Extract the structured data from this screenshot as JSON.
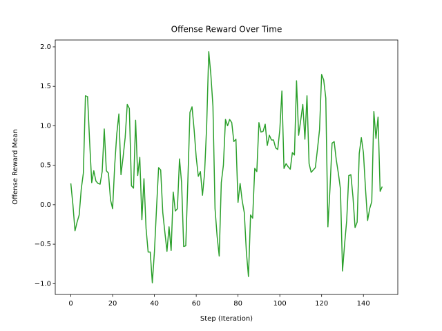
{
  "chart_data": {
    "type": "line",
    "title": "Offense Reward Over Time",
    "x_label": "Step (Iteration)",
    "y_label": "Offense Reward Mean",
    "x": [
      0,
      1,
      2,
      3,
      4,
      5,
      6,
      7,
      8,
      9,
      10,
      11,
      12,
      13,
      14,
      15,
      16,
      17,
      18,
      19,
      20,
      21,
      22,
      23,
      24,
      25,
      26,
      27,
      28,
      29,
      30,
      31,
      32,
      33,
      34,
      35,
      36,
      37,
      38,
      39,
      40,
      41,
      42,
      43,
      44,
      45,
      46,
      47,
      48,
      49,
      50,
      51,
      52,
      53,
      54,
      55,
      56,
      57,
      58,
      59,
      60,
      61,
      62,
      63,
      64,
      65,
      66,
      67,
      68,
      69,
      70,
      71,
      72,
      73,
      74,
      75,
      76,
      77,
      78,
      79,
      80,
      81,
      82,
      83,
      84,
      85,
      86,
      87,
      88,
      89,
      90,
      91,
      92,
      93,
      94,
      95,
      96,
      97,
      98,
      99,
      100,
      101,
      102,
      103,
      104,
      105,
      106,
      107,
      108,
      109,
      110,
      111,
      112,
      113,
      114,
      115,
      116,
      117,
      118,
      119,
      120,
      121,
      122,
      123,
      124,
      125,
      126,
      127,
      128,
      129,
      130,
      131,
      132,
      133,
      134,
      135,
      136,
      137,
      138,
      139,
      140,
      141,
      142,
      143,
      144,
      145,
      146,
      147,
      148,
      149
    ],
    "series": [
      {
        "color": "#2ca02c",
        "values": [
          0.27,
          0.0,
          -0.33,
          -0.22,
          -0.13,
          0.2,
          0.4,
          1.38,
          1.37,
          0.8,
          0.28,
          0.43,
          0.3,
          0.27,
          0.26,
          0.42,
          0.96,
          0.43,
          0.4,
          0.06,
          -0.05,
          0.5,
          0.9,
          1.15,
          0.38,
          0.6,
          0.85,
          1.27,
          1.22,
          0.24,
          0.21,
          1.07,
          0.37,
          0.6,
          -0.19,
          0.33,
          -0.3,
          -0.6,
          -0.6,
          -0.99,
          -0.6,
          -0.05,
          0.47,
          0.44,
          -0.1,
          -0.35,
          -0.59,
          -0.28,
          -0.58,
          0.16,
          -0.08,
          -0.05,
          0.58,
          0.28,
          -0.53,
          -0.52,
          0.3,
          1.17,
          1.24,
          0.95,
          0.6,
          0.36,
          0.42,
          0.12,
          0.4,
          1.0,
          1.94,
          1.65,
          1.25,
          -0.05,
          -0.4,
          -0.65,
          0.28,
          0.5,
          1.08,
          1.0,
          1.08,
          1.04,
          0.8,
          0.83,
          0.03,
          0.27,
          0.05,
          -0.1,
          -0.6,
          -0.91,
          -0.13,
          -0.17,
          0.46,
          0.42,
          1.04,
          0.92,
          0.93,
          1.02,
          0.75,
          0.88,
          0.82,
          0.82,
          0.72,
          0.7,
          0.95,
          1.44,
          0.46,
          0.52,
          0.48,
          0.45,
          0.66,
          0.63,
          1.57,
          0.88,
          1.07,
          1.27,
          0.83,
          1.38,
          0.52,
          0.41,
          0.44,
          0.47,
          0.7,
          0.95,
          1.65,
          1.58,
          1.35,
          -0.28,
          0.2,
          0.78,
          0.8,
          0.57,
          0.4,
          0.2,
          -0.84,
          -0.5,
          -0.2,
          0.37,
          0.38,
          0.1,
          -0.29,
          -0.22,
          0.65,
          0.85,
          0.66,
          0.2,
          -0.2,
          -0.05,
          0.04,
          1.18,
          0.84,
          1.11,
          0.17,
          0.23
        ]
      }
    ],
    "xlim": [
      -7.45,
      156.45
    ],
    "ylim": [
      -1.137,
      2.087
    ],
    "xticks": [
      0,
      20,
      40,
      60,
      80,
      100,
      120,
      140
    ],
    "yticks": [
      {
        "value": -1.0,
        "label": "−1.0"
      },
      {
        "value": -0.5,
        "label": "−0.5"
      },
      {
        "value": 0.0,
        "label": "0.0"
      },
      {
        "value": 0.5,
        "label": "0.5"
      },
      {
        "value": 1.0,
        "label": "1.0"
      },
      {
        "value": 1.5,
        "label": "1.5"
      },
      {
        "value": 2.0,
        "label": "2.0"
      }
    ],
    "grid": false
  }
}
